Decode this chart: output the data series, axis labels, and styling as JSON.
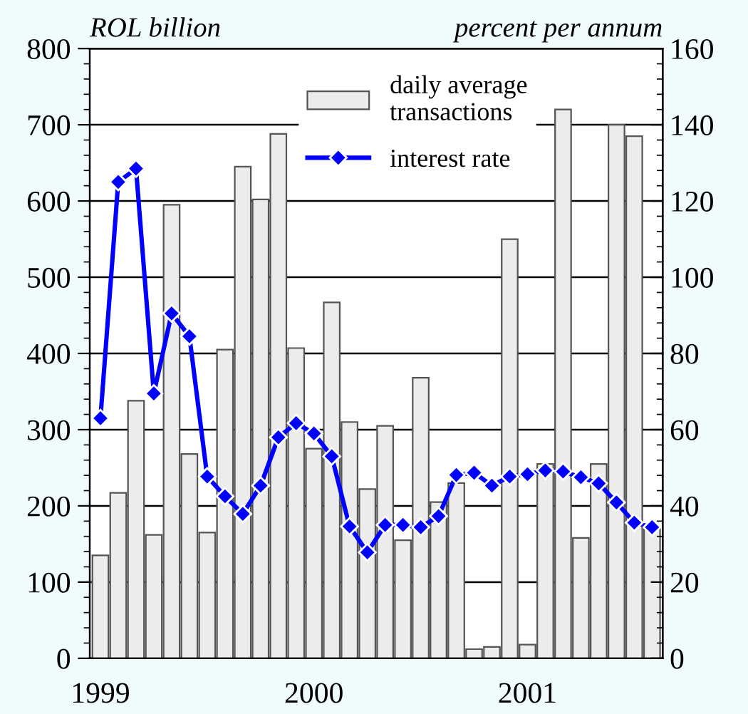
{
  "chart_data": {
    "type": "bar",
    "ylabel": "ROL billion",
    "y2label": "percent per annum",
    "categories": [
      "1999",
      null,
      null,
      null,
      null,
      null,
      null,
      null,
      null,
      null,
      null,
      null,
      "2000",
      null,
      null,
      null,
      null,
      null,
      null,
      null,
      null,
      null,
      null,
      null,
      "2001",
      null,
      null,
      null,
      null,
      null,
      null,
      null
    ],
    "series": [
      {
        "name": "daily average\ntransactions",
        "type": "bar",
        "color": "#ececec",
        "values": [
          135,
          217,
          338,
          162,
          595,
          268,
          165,
          405,
          645,
          602,
          688,
          407,
          275,
          467,
          310,
          222,
          305,
          155,
          368,
          205,
          230,
          12,
          15,
          550,
          18,
          255,
          720,
          158,
          255,
          700,
          685,
          170
        ]
      },
      {
        "name": "interest rate",
        "type": "line",
        "axis": "y2",
        "color": "#0000ff",
        "marker": "diamond",
        "line_style": "solid",
        "values": [
          63,
          125,
          128.5,
          69.5,
          90.5,
          84.5,
          47.7,
          42.5,
          37.9,
          45.3,
          58,
          61.7,
          59,
          53,
          34.6,
          27.8,
          35,
          35,
          34.4,
          37.3,
          48.1,
          48.7,
          45.3,
          47.7,
          48.3,
          49.3,
          49,
          47.5,
          45.9,
          40.9,
          35.6,
          34.4
        ]
      }
    ],
    "ylim": [
      0,
      800
    ],
    "yticks": [
      0,
      100,
      200,
      300,
      400,
      500,
      600,
      700,
      800
    ],
    "y2lim": [
      0,
      160
    ],
    "y2ticks": [
      0,
      20,
      40,
      60,
      80,
      100,
      120,
      140,
      160
    ],
    "grid": "y",
    "legend": "top right"
  }
}
